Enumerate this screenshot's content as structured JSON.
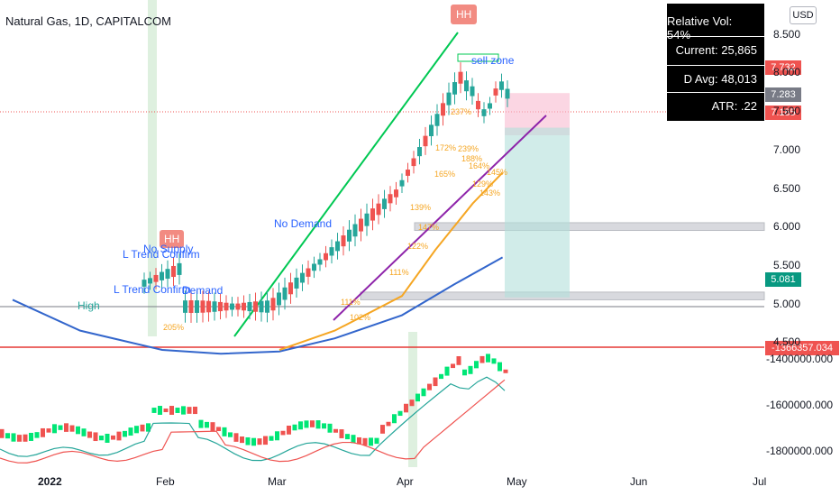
{
  "header": {
    "title": "Natural Gas, 1D, CAPITALCOM",
    "currency": "USD"
  },
  "stats_box": {
    "relative_vol": "Relative Vol: 54%",
    "current": "Current: 25,865",
    "d_avg": "D Avg: 48,013",
    "atr": "ATR: .22"
  },
  "price_badges": [
    {
      "label": "7.732",
      "color": "#ef5350"
    },
    {
      "label": "7.283",
      "color": "#787b86"
    },
    {
      "label": "7.185",
      "color": "#ef5350"
    },
    {
      "label": "5.081",
      "color": "#089981"
    }
  ],
  "indicator_badge": {
    "label": "-1366357.034",
    "color": "#ef5350"
  },
  "annotations": {
    "hh_top": "HH",
    "hh_left": "HH",
    "sell_zone": "sell zone",
    "no_demand_upper": "No Demand",
    "no_supply": "No Supply",
    "l_trend_confirm_1": "L Trend Confirm",
    "l_trend_confirm_2": "L Trend Confirm",
    "demand": "Demand",
    "high": "High",
    "pct_labels": [
      "237%",
      "239%",
      "172%",
      "188%",
      "164%",
      "165%",
      "139%",
      "129%",
      "143%",
      "147%",
      "122%",
      "111%",
      "111%",
      "102%",
      "205%",
      "145%"
    ]
  },
  "chart_data": [
    {
      "type": "candlestick",
      "title": "Natural Gas, 1D, CAPITALCOM",
      "xlabel": "",
      "ylabel": "",
      "x_ticks": [
        "2022",
        "Feb",
        "Mar",
        "Apr",
        "May",
        "Jun",
        "Jul"
      ],
      "y_ticks": [
        4.5,
        5.0,
        5.5,
        6.0,
        6.5,
        7.0,
        7.5,
        8.0,
        8.5
      ],
      "y_tick_labels": [
        "4.500",
        "5.000",
        "5.500",
        "6.000",
        "6.500",
        "7.000",
        "7.500",
        "8.000",
        "8.500"
      ],
      "ylim": [
        4.4,
        8.6
      ],
      "series": [
        {
          "name": "",
          "color": "#3366cc",
          "x": [
            "2022-01-01",
            "2022-01-15",
            "2022-02-01",
            "2022-02-15",
            "2022-03-01",
            "2022-03-15",
            "2022-04-01",
            "2022-04-15",
            "2022-04-28"
          ],
          "y": [
            5.05,
            4.65,
            4.4,
            4.35,
            4.38,
            4.55,
            4.85,
            5.25,
            5.6
          ]
        },
        {
          "name": "",
          "color": "#f5a623",
          "x": [
            "2022-03-01",
            "2022-03-15",
            "2022-04-01",
            "2022-04-10",
            "2022-04-20",
            "2022-04-28"
          ],
          "y": [
            4.4,
            4.65,
            5.1,
            5.7,
            6.3,
            6.7
          ]
        }
      ],
      "levels": {
        "current_price": 7.185,
        "close_label": 7.283,
        "target_high": 7.732,
        "target_low": 5.081,
        "support_zone": [
          5.95,
          6.05
        ],
        "support_zone_2": [
          5.05,
          5.15
        ]
      }
    },
    {
      "type": "candlestick",
      "title": "",
      "y_ticks": [
        -1400000,
        -1600000,
        -1800000
      ],
      "y_tick_labels": [
        "-1400000.000",
        "-1600000.000",
        "-1800000.000"
      ],
      "ylim": [
        -1880000,
        -1360000
      ],
      "last_value": -1366357.034
    }
  ]
}
